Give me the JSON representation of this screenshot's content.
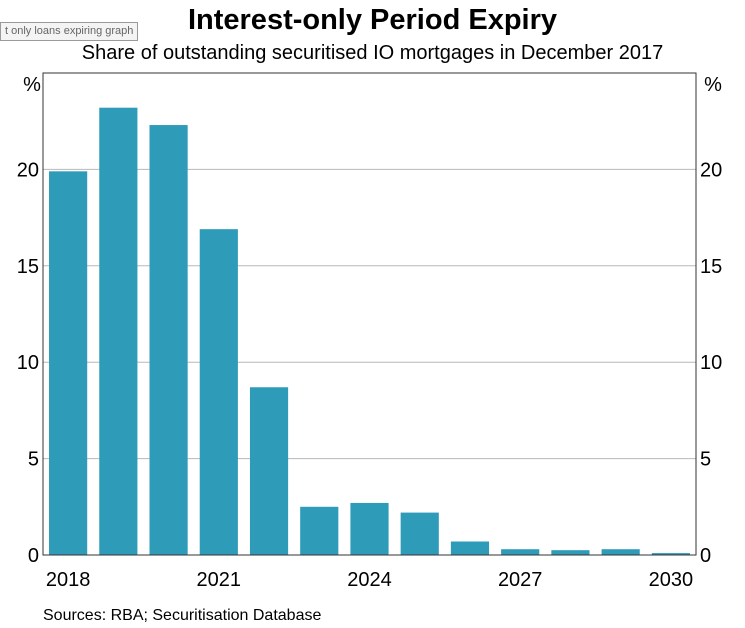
{
  "tooltip": "t only loans expiring graph",
  "chart_data": {
    "type": "bar",
    "title": "Interest-only Period Expiry",
    "subtitle": "Share of outstanding securitised IO mortgages in December 2017",
    "y_unit_left": "%",
    "y_unit_right": "%",
    "categories": [
      "2018",
      "2019",
      "2020",
      "2021",
      "2022",
      "2023",
      "2024",
      "2025",
      "2026",
      "2027",
      "2028",
      "2029",
      "2030"
    ],
    "x_tick_labels": [
      "2018",
      "2021",
      "2024",
      "2027",
      "2030"
    ],
    "values": [
      19.9,
      23.2,
      22.3,
      16.9,
      8.7,
      2.5,
      2.7,
      2.2,
      0.7,
      0.3,
      0.25,
      0.3,
      0.1
    ],
    "ylim": [
      0,
      25
    ],
    "y_ticks": [
      0,
      5,
      10,
      15,
      20
    ],
    "grid": true,
    "bar_color": "#2e9bb8",
    "source": "Sources: RBA; Securitisation Database"
  }
}
